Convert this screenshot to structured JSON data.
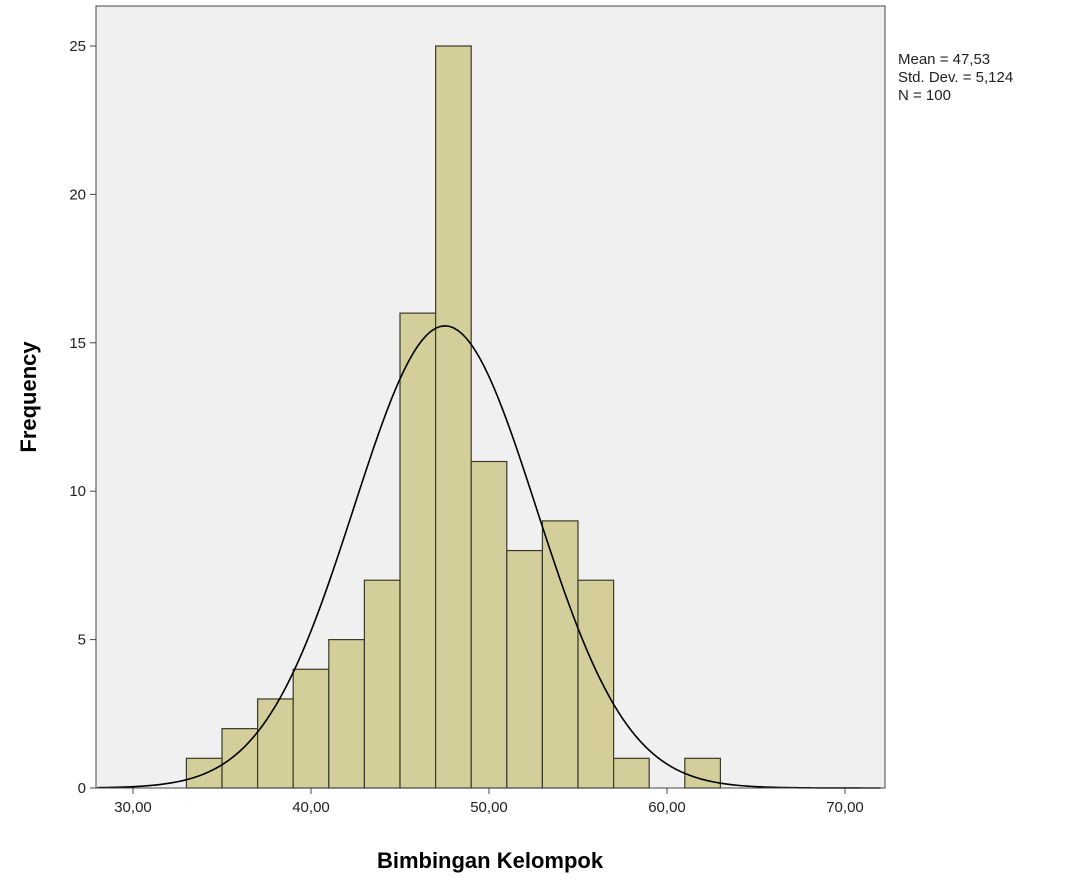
{
  "chart_data": {
    "type": "bar",
    "subtype": "histogram",
    "xlabel": "Bimbingan Kelompok",
    "ylabel": "Frequency",
    "xlim": [
      28,
      72
    ],
    "ylim": [
      0,
      26.5
    ],
    "xticks": [
      {
        "value": 30,
        "label": "30,00"
      },
      {
        "value": 40,
        "label": "40,00"
      },
      {
        "value": 50,
        "label": "50,00"
      },
      {
        "value": 60,
        "label": "60,00"
      },
      {
        "value": 70,
        "label": "70,00"
      }
    ],
    "yticks": [
      {
        "value": 0,
        "label": "0"
      },
      {
        "value": 5,
        "label": "5"
      },
      {
        "value": 10,
        "label": "10"
      },
      {
        "value": 15,
        "label": "15"
      },
      {
        "value": 20,
        "label": "20"
      },
      {
        "value": 25,
        "label": "25"
      }
    ],
    "bins": [
      {
        "start": 33,
        "end": 35,
        "count": 1
      },
      {
        "start": 35,
        "end": 37,
        "count": 2
      },
      {
        "start": 37,
        "end": 39,
        "count": 3
      },
      {
        "start": 39,
        "end": 41,
        "count": 4
      },
      {
        "start": 41,
        "end": 43,
        "count": 5
      },
      {
        "start": 43,
        "end": 45,
        "count": 7
      },
      {
        "start": 45,
        "end": 47,
        "count": 16
      },
      {
        "start": 47,
        "end": 49,
        "count": 25
      },
      {
        "start": 49,
        "end": 51,
        "count": 11
      },
      {
        "start": 51,
        "end": 53,
        "count": 8
      },
      {
        "start": 53,
        "end": 55,
        "count": 9
      },
      {
        "start": 55,
        "end": 57,
        "count": 7
      },
      {
        "start": 57,
        "end": 59,
        "count": 1
      },
      {
        "start": 59,
        "end": 61,
        "count": 0
      },
      {
        "start": 61,
        "end": 63,
        "count": 1
      }
    ],
    "normal_curve": {
      "mean": 47.53,
      "std_dev": 5.124,
      "n": 100,
      "bin_width": 2
    },
    "stats": {
      "mean_label": "Mean = 47,53",
      "std_label": "Std. Dev. = 5,124",
      "n_label": "N = 100"
    },
    "grid": false,
    "colors": {
      "bar_fill": "#d3ce9a",
      "bar_stroke": "#3a3a2a",
      "plot_background": "#f0f0f0",
      "curve": "#000000"
    }
  }
}
